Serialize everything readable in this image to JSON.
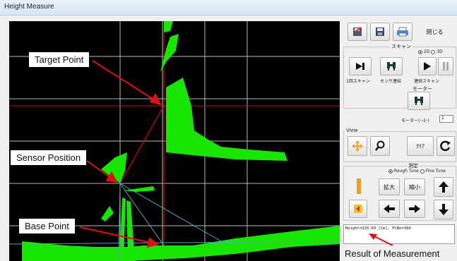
{
  "window": {
    "title": "Height Measure"
  },
  "callouts": {
    "target_point": "Target Point",
    "sensor_position": "Sensor Position",
    "base_point": "Base Point",
    "result_of_measurement": "Result of Measurement"
  },
  "toolbar": {
    "close_label": "閉じる"
  },
  "scan": {
    "section_label": "スキャン",
    "mode_2d": "2D",
    "mode_3d": "3D",
    "selected_mode": "2D",
    "single_scan_label": "1回スキャン",
    "sensor_link_label": "センサ連結",
    "continuous_scan_label": "連続スキャン"
  },
  "motor": {
    "section_label": "モーター",
    "speed_label": "モーター(ｰ-ﾛｰ)",
    "speed_value": "1"
  },
  "view": {
    "section_label": "View",
    "clear_label": "ｸﾘｱ"
  },
  "measure": {
    "section_label": "測定",
    "rough_tune": "Rough Tune",
    "fine_tune": "Fine Tune",
    "selected_tune": "Rough Tune",
    "zoom_in_label": "拡大",
    "zoom_out_label": "縮小"
  },
  "result": {
    "text": "Height=320.60 [Cm], PtNo=360"
  },
  "colors": {
    "scan_points": "#19e600",
    "grid": "#d9d9d9",
    "measure_lines": "#cc1111",
    "laser_line": "#5aa3c8",
    "callout_arrow": "#dd1111",
    "scan_background": "#000000"
  }
}
